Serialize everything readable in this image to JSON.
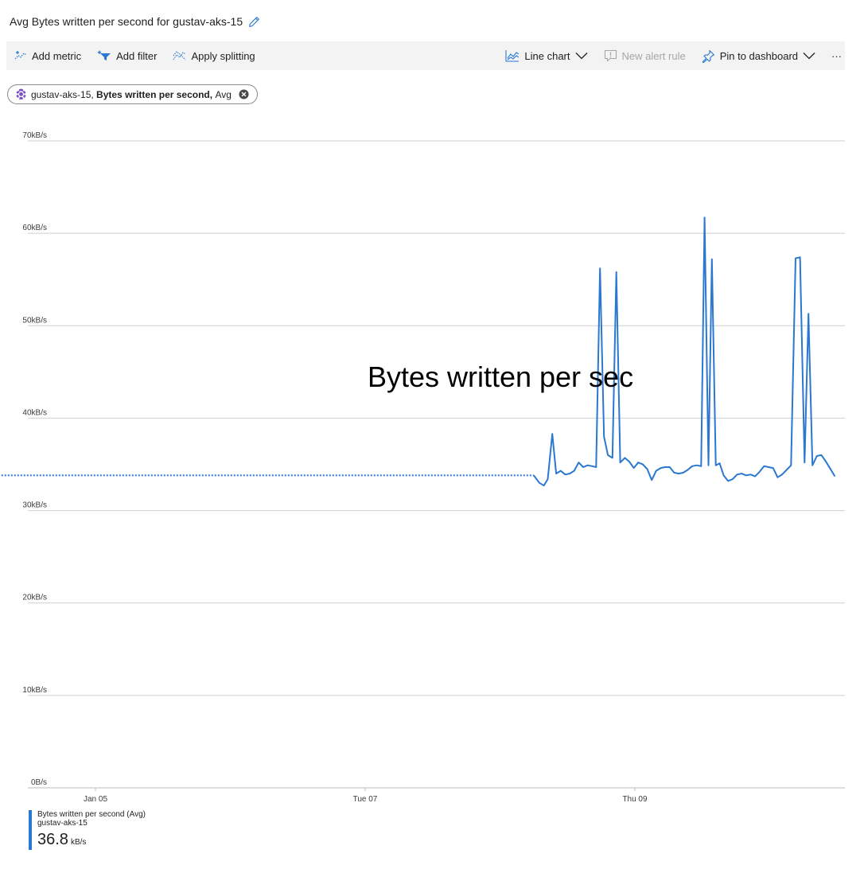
{
  "header": {
    "title": "Avg Bytes written per second for gustav-aks-15"
  },
  "toolbar": {
    "add_metric": "Add metric",
    "add_filter": "Add filter",
    "apply_splitting": "Apply splitting",
    "chart_type": "Line chart",
    "new_alert_rule": "New alert rule",
    "pin_to_dashboard": "Pin to dashboard",
    "more": "···"
  },
  "metric_pill": {
    "resource": "gustav-aks-15,",
    "metric": "Bytes written per second,",
    "aggregation": "Avg"
  },
  "colors": {
    "accent": "#2b78d0",
    "resource_icon": "#7a50c4",
    "toolbar_bg": "#f3f3f3",
    "gridline": "#cfcfcf"
  },
  "icons": {
    "edit": "pencil-icon",
    "add_metric": "add-metric-icon",
    "add_filter": "funnel-icon",
    "apply_splitting": "splitting-icon",
    "line_chart": "line-chart-icon",
    "new_alert_rule": "alert-icon",
    "pin": "pin-icon",
    "resource": "kubernetes-icon",
    "remove": "close-circle-icon"
  },
  "chart_data": {
    "type": "line",
    "overlay_text": "Bytes written per sec",
    "y_ticks": [
      "0B/s",
      "10kB/s",
      "20kB/s",
      "30kB/s",
      "40kB/s",
      "50kB/s",
      "60kB/s",
      "70kB/s"
    ],
    "ylim": [
      0,
      70
    ],
    "y_unit": "kB/s",
    "x_ticks": [
      "Jan 05",
      "Tue 07",
      "Thu 09"
    ],
    "x_tick_hours": [
      24,
      72,
      120
    ],
    "xlim_hours": [
      0,
      144
    ],
    "grid": true,
    "series": [
      {
        "name": "Bytes written per second (Avg)",
        "color": "#2b78d0",
        "dotted_segment": {
          "x_hours": [
            5,
            102
          ],
          "y": 33.8
        },
        "points": [
          [
            102,
            33.8
          ],
          [
            103.0,
            33.0
          ],
          [
            103.8,
            32.7
          ],
          [
            104.5,
            33.4
          ],
          [
            105.3,
            38.3
          ],
          [
            106.0,
            34.0
          ],
          [
            106.8,
            34.3
          ],
          [
            107.6,
            33.9
          ],
          [
            108.4,
            34.0
          ],
          [
            109.2,
            34.3
          ],
          [
            110.0,
            35.2
          ],
          [
            110.8,
            34.7
          ],
          [
            111.6,
            34.9
          ],
          [
            112.4,
            34.8
          ],
          [
            113.1,
            34.7
          ],
          [
            113.8,
            56.2
          ],
          [
            114.5,
            38.0
          ],
          [
            115.2,
            36.0
          ],
          [
            116.0,
            35.7
          ],
          [
            116.7,
            55.8
          ],
          [
            117.4,
            35.2
          ],
          [
            118.2,
            35.7
          ],
          [
            119.0,
            35.3
          ],
          [
            119.8,
            34.6
          ],
          [
            120.6,
            35.2
          ],
          [
            121.4,
            35.0
          ],
          [
            122.2,
            34.5
          ],
          [
            123.0,
            33.3
          ],
          [
            123.8,
            34.3
          ],
          [
            124.6,
            34.6
          ],
          [
            125.4,
            34.7
          ],
          [
            126.2,
            34.7
          ],
          [
            127.0,
            34.1
          ],
          [
            127.8,
            34.0
          ],
          [
            128.6,
            34.1
          ],
          [
            129.4,
            34.4
          ],
          [
            130.2,
            34.8
          ],
          [
            131.0,
            34.9
          ],
          [
            131.8,
            34.8
          ],
          [
            132.4,
            61.7
          ],
          [
            133.1,
            34.9
          ],
          [
            133.7,
            57.2
          ],
          [
            134.4,
            34.9
          ],
          [
            135.1,
            35.1
          ],
          [
            135.8,
            33.8
          ],
          [
            136.6,
            33.2
          ],
          [
            137.4,
            33.4
          ],
          [
            138.2,
            33.9
          ],
          [
            139.0,
            34.0
          ],
          [
            139.8,
            33.8
          ],
          [
            140.6,
            33.9
          ],
          [
            141.4,
            33.7
          ],
          [
            142.2,
            34.2
          ],
          [
            143.0,
            34.8
          ],
          [
            143.8,
            34.7
          ],
          [
            144.6,
            34.6
          ],
          [
            145.4,
            33.6
          ],
          [
            146.2,
            33.9
          ],
          [
            147.0,
            34.4
          ],
          [
            147.8,
            34.9
          ],
          [
            148.6,
            57.3
          ],
          [
            149.4,
            57.4
          ],
          [
            150.2,
            35.2
          ],
          [
            150.9,
            51.3
          ],
          [
            151.6,
            34.9
          ],
          [
            152.4,
            35.9
          ],
          [
            153.2,
            36.0
          ],
          [
            154.0,
            35.3
          ],
          [
            154.8,
            34.5
          ],
          [
            155.6,
            33.7
          ]
        ]
      }
    ]
  },
  "legend": {
    "metric_label": "Bytes written per second (Avg)",
    "resource": "gustav-aks-15",
    "value": "36.8",
    "unit": "kB/s"
  }
}
